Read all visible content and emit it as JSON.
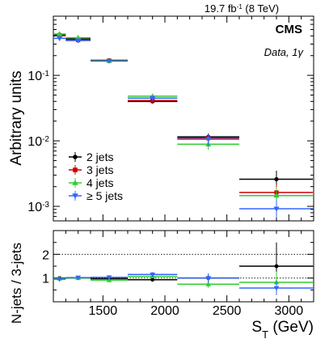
{
  "header": {
    "lumi_main": "19.7 fb",
    "lumi_exp": "-1",
    "lumi_tail": " (8 TeV)",
    "experiment": "CMS",
    "selection_pre": "Data, 1",
    "selection_sym": "γ"
  },
  "colors": {
    "2 jets": "#000000",
    "3 jets": "#cc0000",
    "4 jets": "#33cc33",
    "5 jets": "#3366ff"
  },
  "chart_data": [
    {
      "type": "scatter",
      "panel": "top",
      "ylabel": "Arbitrary units",
      "yscale": "log",
      "xlim": [
        1100,
        3200
      ],
      "ylim": [
        0.0006,
        0.8
      ],
      "y_ticks": [
        {
          "value": 0.001,
          "base": "10",
          "exp": "-3"
        },
        {
          "value": 0.01,
          "base": "10",
          "exp": "-2"
        },
        {
          "value": 0.1,
          "base": "10",
          "exp": "-1"
        }
      ],
      "legend": {
        "position": "lower-left"
      },
      "bins": [
        [
          1100,
          1200
        ],
        [
          1200,
          1400
        ],
        [
          1400,
          1700
        ],
        [
          1700,
          2100
        ],
        [
          2100,
          2600
        ],
        [
          2600,
          3200
        ]
      ],
      "series": [
        {
          "name": "2 jets",
          "marker": "circle",
          "values": [
            0.42,
            0.36,
            0.17,
            0.04,
            0.0115,
            0.0026
          ],
          "err": [
            0.01,
            0.01,
            0.005,
            0.002,
            0.0015,
            0.0009
          ]
        },
        {
          "name": "3 jets",
          "marker": "square",
          "values": [
            0.42,
            0.36,
            0.175,
            0.043,
            0.0115,
            0.0017
          ],
          "err": [
            0.01,
            0.01,
            0.005,
            0.002,
            0.002,
            0.0006
          ]
        },
        {
          "name": "4 jets",
          "marker": "triangle-up",
          "values": [
            0.41,
            0.36,
            0.16,
            0.046,
            0.0085,
            0.0014
          ],
          "err": [
            0.01,
            0.01,
            0.005,
            0.002,
            0.0015,
            0.0005
          ]
        },
        {
          "name": "≥ 5 jets",
          "marker": "triangle-down",
          "values": [
            0.4,
            0.37,
            0.18,
            0.049,
            0.0115,
            0.001
          ],
          "err": [
            0.01,
            0.01,
            0.005,
            0.003,
            0.0025,
            0.0004
          ]
        }
      ]
    },
    {
      "type": "scatter",
      "panel": "ratio",
      "xlabel_main": "S",
      "xlabel_sub": "T",
      "xlabel_unit": " (GeV)",
      "ylabel": "N-jets / 3-jets",
      "xlim": [
        1100,
        3200
      ],
      "ylim": [
        0,
        3
      ],
      "x_ticks": [
        "1500",
        "2000",
        "2500",
        "3000"
      ],
      "y_ticks": [
        "1",
        "2"
      ],
      "reference_lines": [
        1,
        2
      ],
      "bins": [
        [
          1100,
          1200
        ],
        [
          1200,
          1400
        ],
        [
          1400,
          1700
        ],
        [
          1700,
          2100
        ],
        [
          2100,
          2600
        ],
        [
          2600,
          3200
        ]
      ],
      "series": [
        {
          "name": "2 jets",
          "values": [
            1.0,
            1.0,
            0.97,
            0.93,
            1.0,
            1.5
          ],
          "err": [
            0.04,
            0.03,
            0.04,
            0.07,
            0.15,
            1.0
          ]
        },
        {
          "name": "4 jets",
          "values": [
            0.98,
            1.0,
            0.91,
            1.07,
            0.74,
            0.82
          ],
          "err": [
            0.04,
            0.03,
            0.04,
            0.08,
            0.15,
            0.45
          ]
        },
        {
          "name": "≥ 5 jets",
          "values": [
            0.95,
            1.02,
            1.03,
            1.15,
            1.0,
            0.58
          ],
          "err": [
            0.04,
            0.03,
            0.05,
            0.1,
            0.2,
            0.3
          ]
        }
      ]
    }
  ]
}
